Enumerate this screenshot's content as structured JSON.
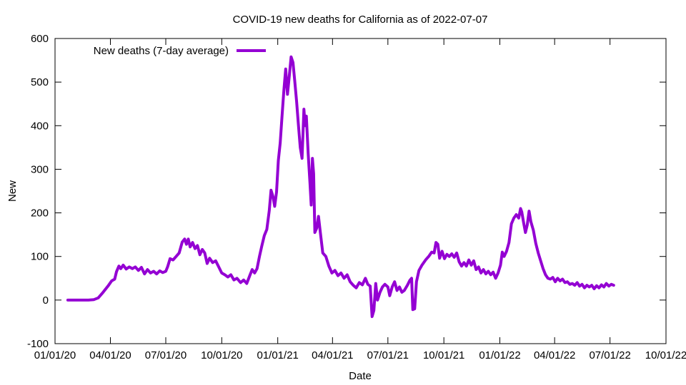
{
  "chart_data": {
    "type": "line",
    "title": "COVID-19 new deaths for California as of 2022-07-07",
    "xlabel": "Date",
    "ylabel": "New",
    "ylim": [
      -100,
      600
    ],
    "yticks": [
      -100,
      0,
      100,
      200,
      300,
      400,
      500,
      600
    ],
    "xlim": [
      "2020-01-01",
      "2022-10-01"
    ],
    "xticks": [
      {
        "date": "2020-01-01",
        "label": "01/01/20"
      },
      {
        "date": "2020-04-01",
        "label": "04/01/20"
      },
      {
        "date": "2020-07-01",
        "label": "07/01/20"
      },
      {
        "date": "2020-10-01",
        "label": "10/01/20"
      },
      {
        "date": "2021-01-01",
        "label": "01/01/21"
      },
      {
        "date": "2021-04-01",
        "label": "04/01/21"
      },
      {
        "date": "2021-07-01",
        "label": "07/01/21"
      },
      {
        "date": "2021-10-01",
        "label": "10/01/21"
      },
      {
        "date": "2022-01-01",
        "label": "01/01/22"
      },
      {
        "date": "2022-04-01",
        "label": "04/01/22"
      },
      {
        "date": "2022-07-01",
        "label": "07/01/22"
      },
      {
        "date": "2022-10-01",
        "label": "10/01/22"
      }
    ],
    "grid": false,
    "legend_position": "top-left",
    "series": [
      {
        "name": "New deaths (7-day average)",
        "color": "#9400d3",
        "points": [
          [
            "2020-01-22",
            0
          ],
          [
            "2020-02-10",
            0
          ],
          [
            "2020-02-25",
            0
          ],
          [
            "2020-03-05",
            1
          ],
          [
            "2020-03-12",
            5
          ],
          [
            "2020-03-20",
            18
          ],
          [
            "2020-03-28",
            32
          ],
          [
            "2020-04-03",
            44
          ],
          [
            "2020-04-08",
            48
          ],
          [
            "2020-04-11",
            65
          ],
          [
            "2020-04-15",
            78
          ],
          [
            "2020-04-18",
            72
          ],
          [
            "2020-04-22",
            80
          ],
          [
            "2020-04-27",
            71
          ],
          [
            "2020-05-02",
            76
          ],
          [
            "2020-05-07",
            72
          ],
          [
            "2020-05-12",
            76
          ],
          [
            "2020-05-17",
            68
          ],
          [
            "2020-05-22",
            75
          ],
          [
            "2020-05-27",
            60
          ],
          [
            "2020-06-01",
            70
          ],
          [
            "2020-06-06",
            62
          ],
          [
            "2020-06-11",
            66
          ],
          [
            "2020-06-16",
            60
          ],
          [
            "2020-06-21",
            67
          ],
          [
            "2020-06-26",
            63
          ],
          [
            "2020-07-01",
            66
          ],
          [
            "2020-07-04",
            76
          ],
          [
            "2020-07-08",
            95
          ],
          [
            "2020-07-13",
            92
          ],
          [
            "2020-07-18",
            100
          ],
          [
            "2020-07-23",
            108
          ],
          [
            "2020-07-28",
            133
          ],
          [
            "2020-08-01",
            140
          ],
          [
            "2020-08-04",
            128
          ],
          [
            "2020-08-07",
            140
          ],
          [
            "2020-08-10",
            122
          ],
          [
            "2020-08-14",
            132
          ],
          [
            "2020-08-18",
            118
          ],
          [
            "2020-08-22",
            125
          ],
          [
            "2020-08-26",
            104
          ],
          [
            "2020-08-30",
            116
          ],
          [
            "2020-09-03",
            108
          ],
          [
            "2020-09-07",
            84
          ],
          [
            "2020-09-11",
            96
          ],
          [
            "2020-09-16",
            86
          ],
          [
            "2020-09-21",
            90
          ],
          [
            "2020-09-26",
            76
          ],
          [
            "2020-10-01",
            62
          ],
          [
            "2020-10-06",
            58
          ],
          [
            "2020-10-11",
            53
          ],
          [
            "2020-10-16",
            58
          ],
          [
            "2020-10-21",
            46
          ],
          [
            "2020-10-26",
            50
          ],
          [
            "2020-11-01",
            40
          ],
          [
            "2020-11-06",
            46
          ],
          [
            "2020-11-11",
            38
          ],
          [
            "2020-11-16",
            56
          ],
          [
            "2020-11-20",
            70
          ],
          [
            "2020-11-24",
            62
          ],
          [
            "2020-11-28",
            72
          ],
          [
            "2020-12-02",
            100
          ],
          [
            "2020-12-06",
            125
          ],
          [
            "2020-12-10",
            148
          ],
          [
            "2020-12-14",
            162
          ],
          [
            "2020-12-18",
            205
          ],
          [
            "2020-12-21",
            252
          ],
          [
            "2020-12-24",
            238
          ],
          [
            "2020-12-27",
            215
          ],
          [
            "2020-12-30",
            248
          ],
          [
            "2021-01-02",
            320
          ],
          [
            "2021-01-05",
            360
          ],
          [
            "2021-01-08",
            420
          ],
          [
            "2021-01-11",
            480
          ],
          [
            "2021-01-14",
            530
          ],
          [
            "2021-01-17",
            472
          ],
          [
            "2021-01-20",
            515
          ],
          [
            "2021-01-23",
            558
          ],
          [
            "2021-01-26",
            545
          ],
          [
            "2021-01-29",
            502
          ],
          [
            "2021-02-01",
            455
          ],
          [
            "2021-02-04",
            402
          ],
          [
            "2021-02-07",
            350
          ],
          [
            "2021-02-10",
            325
          ],
          [
            "2021-02-13",
            438
          ],
          [
            "2021-02-15",
            400
          ],
          [
            "2021-02-17",
            422
          ],
          [
            "2021-02-20",
            335
          ],
          [
            "2021-02-23",
            268
          ],
          [
            "2021-02-25",
            218
          ],
          [
            "2021-02-27",
            325
          ],
          [
            "2021-03-01",
            290
          ],
          [
            "2021-03-03",
            155
          ],
          [
            "2021-03-06",
            165
          ],
          [
            "2021-03-09",
            192
          ],
          [
            "2021-03-12",
            155
          ],
          [
            "2021-03-16",
            108
          ],
          [
            "2021-03-21",
            100
          ],
          [
            "2021-03-26",
            78
          ],
          [
            "2021-03-31",
            62
          ],
          [
            "2021-04-05",
            68
          ],
          [
            "2021-04-10",
            56
          ],
          [
            "2021-04-15",
            62
          ],
          [
            "2021-04-20",
            50
          ],
          [
            "2021-04-25",
            58
          ],
          [
            "2021-04-30",
            42
          ],
          [
            "2021-05-05",
            34
          ],
          [
            "2021-05-10",
            28
          ],
          [
            "2021-05-15",
            40
          ],
          [
            "2021-05-20",
            35
          ],
          [
            "2021-05-25",
            50
          ],
          [
            "2021-05-29",
            36
          ],
          [
            "2021-06-02",
            32
          ],
          [
            "2021-06-05",
            -38
          ],
          [
            "2021-06-08",
            -24
          ],
          [
            "2021-06-11",
            38
          ],
          [
            "2021-06-14",
            0
          ],
          [
            "2021-06-18",
            18
          ],
          [
            "2021-06-22",
            30
          ],
          [
            "2021-06-26",
            36
          ],
          [
            "2021-07-01",
            30
          ],
          [
            "2021-07-04",
            10
          ],
          [
            "2021-07-08",
            30
          ],
          [
            "2021-07-12",
            42
          ],
          [
            "2021-07-16",
            22
          ],
          [
            "2021-07-20",
            30
          ],
          [
            "2021-07-24",
            18
          ],
          [
            "2021-07-28",
            22
          ],
          [
            "2021-08-02",
            34
          ],
          [
            "2021-08-06",
            45
          ],
          [
            "2021-08-09",
            50
          ],
          [
            "2021-08-11",
            -22
          ],
          [
            "2021-08-14",
            -20
          ],
          [
            "2021-08-17",
            42
          ],
          [
            "2021-08-21",
            68
          ],
          [
            "2021-08-26",
            80
          ],
          [
            "2021-09-01",
            92
          ],
          [
            "2021-09-06",
            100
          ],
          [
            "2021-09-11",
            110
          ],
          [
            "2021-09-15",
            108
          ],
          [
            "2021-09-18",
            132
          ],
          [
            "2021-09-21",
            128
          ],
          [
            "2021-09-24",
            96
          ],
          [
            "2021-09-28",
            112
          ],
          [
            "2021-10-02",
            95
          ],
          [
            "2021-10-06",
            105
          ],
          [
            "2021-10-10",
            100
          ],
          [
            "2021-10-14",
            106
          ],
          [
            "2021-10-18",
            98
          ],
          [
            "2021-10-22",
            108
          ],
          [
            "2021-10-26",
            88
          ],
          [
            "2021-10-30",
            78
          ],
          [
            "2021-11-03",
            86
          ],
          [
            "2021-11-07",
            78
          ],
          [
            "2021-11-11",
            92
          ],
          [
            "2021-11-15",
            80
          ],
          [
            "2021-11-19",
            90
          ],
          [
            "2021-11-23",
            70
          ],
          [
            "2021-11-27",
            76
          ],
          [
            "2021-12-01",
            62
          ],
          [
            "2021-12-05",
            70
          ],
          [
            "2021-12-09",
            60
          ],
          [
            "2021-12-13",
            66
          ],
          [
            "2021-12-17",
            58
          ],
          [
            "2021-12-21",
            64
          ],
          [
            "2021-12-25",
            50
          ],
          [
            "2021-12-29",
            62
          ],
          [
            "2022-01-02",
            80
          ],
          [
            "2022-01-05",
            110
          ],
          [
            "2022-01-08",
            100
          ],
          [
            "2022-01-12",
            112
          ],
          [
            "2022-01-16",
            132
          ],
          [
            "2022-01-20",
            175
          ],
          [
            "2022-01-24",
            188
          ],
          [
            "2022-01-28",
            196
          ],
          [
            "2022-02-01",
            188
          ],
          [
            "2022-02-04",
            210
          ],
          [
            "2022-02-06",
            202
          ],
          [
            "2022-02-09",
            178
          ],
          [
            "2022-02-12",
            155
          ],
          [
            "2022-02-15",
            172
          ],
          [
            "2022-02-18",
            204
          ],
          [
            "2022-02-21",
            180
          ],
          [
            "2022-02-25",
            160
          ],
          [
            "2022-03-01",
            130
          ],
          [
            "2022-03-05",
            108
          ],
          [
            "2022-03-09",
            90
          ],
          [
            "2022-03-13",
            72
          ],
          [
            "2022-03-17",
            58
          ],
          [
            "2022-03-21",
            50
          ],
          [
            "2022-03-25",
            48
          ],
          [
            "2022-03-29",
            52
          ],
          [
            "2022-04-02",
            42
          ],
          [
            "2022-04-06",
            50
          ],
          [
            "2022-04-10",
            44
          ],
          [
            "2022-04-14",
            48
          ],
          [
            "2022-04-18",
            40
          ],
          [
            "2022-04-22",
            42
          ],
          [
            "2022-04-26",
            36
          ],
          [
            "2022-04-30",
            38
          ],
          [
            "2022-05-04",
            34
          ],
          [
            "2022-05-08",
            40
          ],
          [
            "2022-05-12",
            32
          ],
          [
            "2022-05-16",
            36
          ],
          [
            "2022-05-20",
            28
          ],
          [
            "2022-05-24",
            34
          ],
          [
            "2022-05-28",
            30
          ],
          [
            "2022-06-01",
            34
          ],
          [
            "2022-06-05",
            26
          ],
          [
            "2022-06-09",
            33
          ],
          [
            "2022-06-13",
            28
          ],
          [
            "2022-06-17",
            35
          ],
          [
            "2022-06-21",
            30
          ],
          [
            "2022-06-25",
            38
          ],
          [
            "2022-06-29",
            32
          ],
          [
            "2022-07-03",
            36
          ],
          [
            "2022-07-07",
            34
          ]
        ]
      }
    ]
  }
}
